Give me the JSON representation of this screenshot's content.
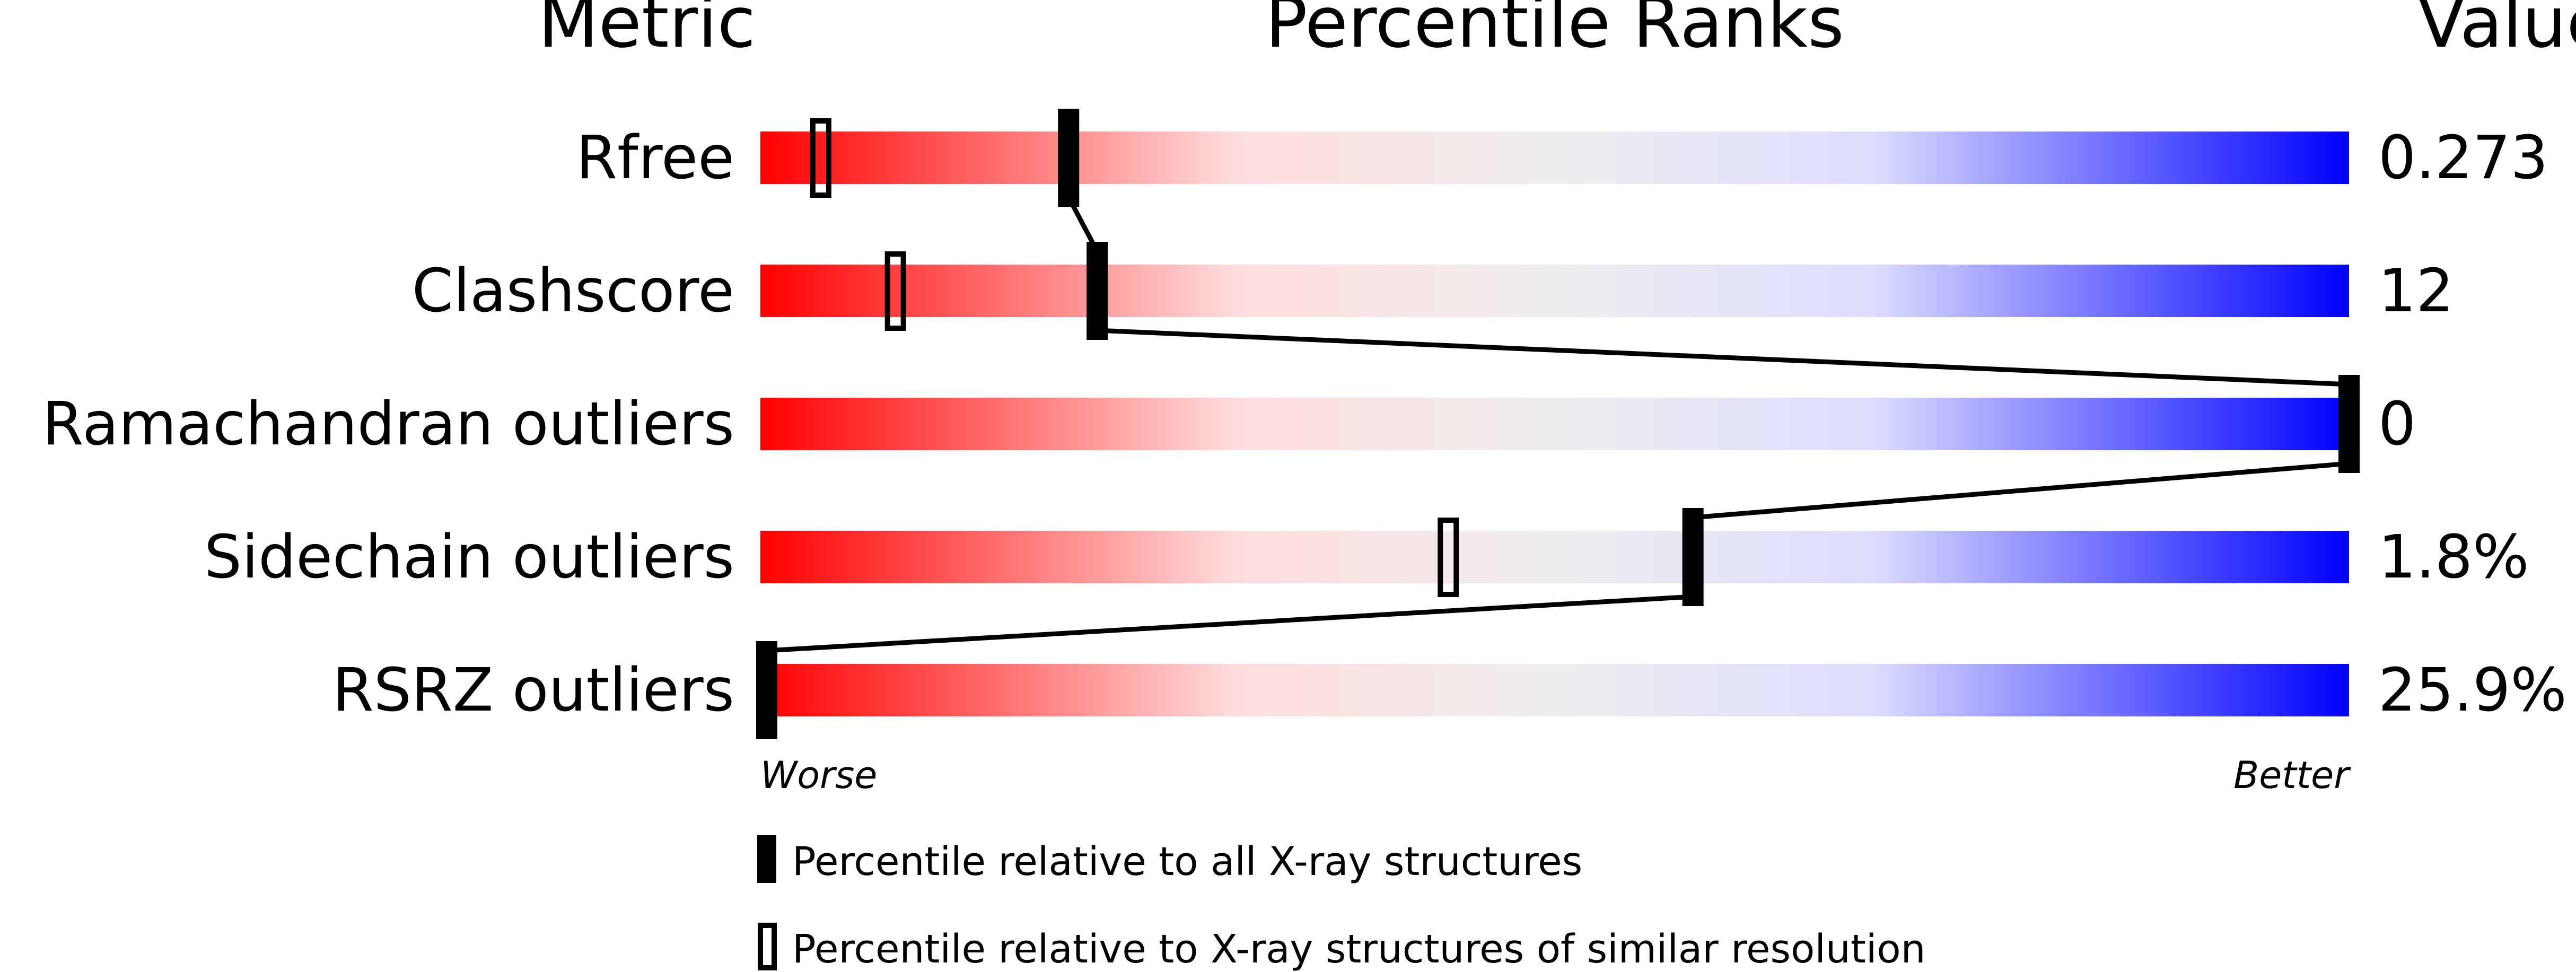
{
  "chart_data": {
    "type": "percentile-bars",
    "headers": {
      "metric": "Metric",
      "ranks": "Percentile Ranks",
      "value": "Value"
    },
    "xlim": [
      0,
      100
    ],
    "axis_labels": {
      "left": "Worse",
      "right": "Better"
    },
    "gradient_colors": [
      "#ff0000",
      "#ffdddd",
      "#eeeeee",
      "#ddddff",
      "#0000ff"
    ],
    "rows": [
      {
        "metric": "Rfree",
        "value": "0.273",
        "all_xray": 19.4,
        "similar_resolution": 3.8
      },
      {
        "metric": "Clashscore",
        "value": "12",
        "all_xray": 21.2,
        "similar_resolution": 8.5
      },
      {
        "metric": "Ramachandran outliers",
        "value": "0",
        "all_xray": 100,
        "similar_resolution": null
      },
      {
        "metric": "Sidechain outliers",
        "value": "1.8%",
        "all_xray": 58.7,
        "similar_resolution": 43.3
      },
      {
        "metric": "RSRZ outliers",
        "value": "25.9%",
        "all_xray": 0.3,
        "similar_resolution": null
      }
    ],
    "legend": [
      {
        "marker": "filled",
        "label": "Percentile relative to all X-ray structures"
      },
      {
        "marker": "open",
        "label": "Percentile relative to X-ray structures of similar resolution"
      }
    ]
  }
}
